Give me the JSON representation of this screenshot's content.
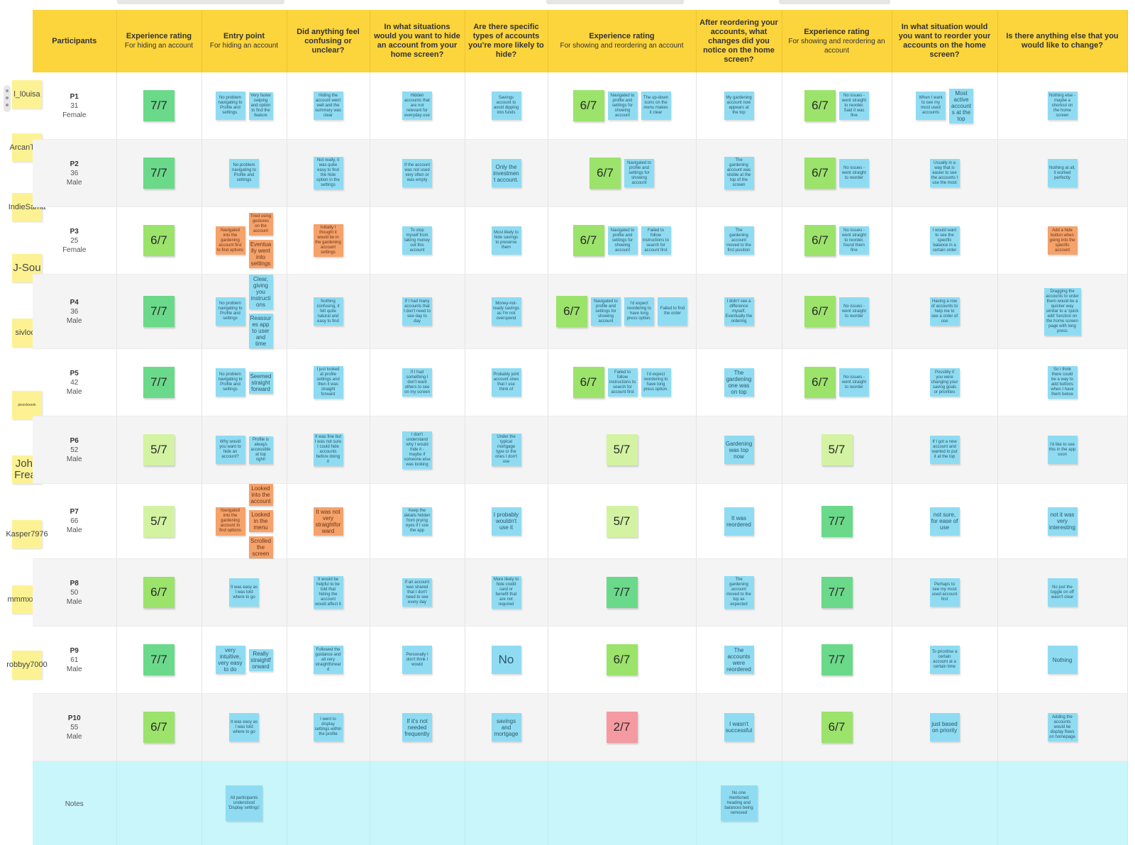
{
  "headers": [
    {
      "title": "Participants",
      "sub": ""
    },
    {
      "title": "Experience rating",
      "sub": "For hiding an account"
    },
    {
      "title": "Entry point",
      "sub": "For hiding an account"
    },
    {
      "title": "Did anything feel confusing or unclear?",
      "sub": ""
    },
    {
      "title": "In what situations would you want to hide an account from your home screen?",
      "sub": ""
    },
    {
      "title": "Are there specific types of accounts you're more likely to hide?",
      "sub": ""
    },
    {
      "title": "Experience rating",
      "sub": "For showing and reordering an account"
    },
    {
      "title": "After reordering your accounts, what changes did you notice on the home screen?",
      "sub": ""
    },
    {
      "title": "Experience rating",
      "sub": "For showing and reordering an account"
    },
    {
      "title": "In what situation would you want to reorder your accounts on the home screen?",
      "sub": ""
    },
    {
      "title": "Is there anything else that you would like to change?",
      "sub": ""
    }
  ],
  "stickies": [
    "l_l0uisa",
    "ArcanTest",
    "IndieSama",
    "J-Sou",
    "sivlock",
    "pixxxlxxxok",
    "John Frear",
    "Kasper7976",
    "mmmxxxxx",
    "robbyy7000"
  ],
  "participants": [
    {
      "id": "P1",
      "age": "31",
      "gender": "Female",
      "rating_hide": "7/7",
      "rating_show": "6/7",
      "rating_reorder": "6/7",
      "entry": [
        "No problem navigating to Profile and settings.",
        "Very faster swiping and option to find the feature"
      ],
      "confusing": [
        "Hiding the account went well and the summary was clear"
      ],
      "hide_when": [
        "Hidden accounts that are not relevant for everyday use"
      ],
      "types": [
        "Savings account to avoid dipping into funds"
      ],
      "show": [
        "Navigated to profile and settings for showing account",
        "The up-down icons on the menu makes it clear"
      ],
      "changes": [
        "My gardening account now appears at the top"
      ],
      "rq": [
        "No issues - went straight to reorder. Said it was fine"
      ],
      "reorder_when": [
        "When I want to see my most used accounts",
        "Most active accounts at the top"
      ],
      "else": [
        "Nothing else - maybe a shortcut on the home screen"
      ]
    },
    {
      "id": "P2",
      "age": "36",
      "gender": "Male",
      "rating_hide": "7/7",
      "rating_show": "6/7",
      "rating_reorder": "6/7",
      "entry": [
        "No problem navigating to Profile and settings"
      ],
      "confusing": [
        "Not really, it was quite easy to find the hide option in the settings"
      ],
      "hide_when": [
        "If the account was not used very often or was empty"
      ],
      "types": [
        "Only the investment account."
      ],
      "show": [
        "Navigated to profile and settings for showing account"
      ],
      "changes": [
        "The gardening account was visible at the top of the screen"
      ],
      "rq": [
        "No issues - went straight to reorder"
      ],
      "reorder_when": [
        "Usually in a way that is easier to see the accounts I use the most"
      ],
      "else": [
        "Nothing at all, it worked perfectly"
      ]
    },
    {
      "id": "P3",
      "age": "25",
      "gender": "Female",
      "rating_hide": "6/7",
      "rating_show": "6/7",
      "rating_reorder": "6/7",
      "entry": [
        "Navigated into the gardening account first to find options",
        "Tried using gestures on the account",
        "Eventually went into settings"
      ],
      "confusing": [
        "Initially I thought it would be in the gardening account settings"
      ],
      "hide_when": [
        "To stop myself from taking money out this account"
      ],
      "types": [
        "Most likely to hide savings to preserve them"
      ],
      "show": [
        "Navigated to profile and settings for showing account",
        "Failed to follow instructions to search for account first"
      ],
      "changes": [
        "The gardening account moved to the first position"
      ],
      "rq": [
        "No issues - went straight to reorder, found them fine"
      ],
      "reorder_when": [
        "I would want to see the specific balance in a certain order"
      ],
      "else": [
        "Add a hide button when going into the specific account"
      ]
    },
    {
      "id": "P4",
      "age": "36",
      "gender": "Male",
      "rating_hide": "7/7",
      "rating_show": "6/7",
      "rating_reorder": "6/7",
      "entry": [
        "No problem navigating to Profile and settings",
        "Clear, giving you instructions",
        "Reassures app to user and time"
      ],
      "confusing": [
        "Nothing confusing, it felt quite natural and easy to find"
      ],
      "hide_when": [
        "If I had many accounts that I don't need to see day to day"
      ],
      "types": [
        "Money-not-ready savings as I'm not overspend"
      ],
      "show": [
        "Navigated to profile and settings for showing account",
        "I'd expect reordering to have long press option.",
        "Failed to find the order"
      ],
      "changes": [
        "I didn't see a difference myself. Eventually the ordering"
      ],
      "rq": [
        "No issues - went straight to reorder"
      ],
      "reorder_when": [
        "Having a row of accounts to help me to see a order of use"
      ],
      "else": [
        "Dragging the accounts to order them would be a quicker way similar to a 'quick edit' function on the home screen page with long press"
      ]
    },
    {
      "id": "P5",
      "age": "42",
      "gender": "Male",
      "rating_hide": "7/7",
      "rating_show": "6/7",
      "rating_reorder": "6/7",
      "entry": [
        "No problem navigating to Profile and settings",
        "Seemed straight forward"
      ],
      "confusing": [
        "I just looked at profile settings and then it was straight forward"
      ],
      "hide_when": [
        "If I had something I don't want others to see on my screen"
      ],
      "types": [
        "Probably joint account ones that I use think of"
      ],
      "show": [
        "Failed to follow instructions to search for account first",
        "I'd expect reordering to have long press option."
      ],
      "changes": [
        "The gardening one was on top"
      ],
      "rq": [
        "No issues - went straight to reorder"
      ],
      "reorder_when": [
        "Possibly if you were changing your saving goals or priorities"
      ],
      "else": [
        "So I think there could be a way to add buttons when I have them below"
      ]
    },
    {
      "id": "P6",
      "age": "52",
      "gender": "Male",
      "rating_hide": "5/7",
      "rating_show": "5/7",
      "rating_reorder": "5/7",
      "entry": [
        "Why would you want to hide an account?",
        "Profile is always accessible at top right!"
      ],
      "confusing": [
        "It was fine but I was not sure I could hide accounts before doing it"
      ],
      "hide_when": [
        "I don't understand why I would hide it - maybe if someone else was looking"
      ],
      "types": [
        "Under the typical mortgage type or the ones I don't use"
      ],
      "show": [],
      "changes": [
        "Gardening was top now"
      ],
      "rq": [],
      "reorder_when": [
        "If I got a new account and wanted to put it at the top"
      ],
      "else": [
        "I'd like to see this in the app soon"
      ]
    },
    {
      "id": "P7",
      "age": "66",
      "gender": "Male",
      "rating_hide": "5/7",
      "rating_show": "5/7",
      "rating_reorder": "7/7",
      "entry": [
        "Navigated into the gardening account to find options",
        "Looked into the account",
        "Looked in the menu",
        "Scrolled the screen"
      ],
      "confusing": [
        "It was not very straightforward"
      ],
      "hide_when": [
        "Keep the details hidden from prying eyes if I use the app"
      ],
      "types": [
        "I probably wouldn't use it"
      ],
      "show": [],
      "changes": [
        "It was reordered"
      ],
      "rq": [],
      "reorder_when": [
        "not sure, for ease of use"
      ],
      "else": [
        "not it was very interesting"
      ]
    },
    {
      "id": "P8",
      "age": "50",
      "gender": "Male",
      "rating_hide": "6/7",
      "rating_show": "7/7",
      "rating_reorder": "7/7",
      "entry": [
        "It was easy as I was told where to go"
      ],
      "confusing": [
        "It would be helpful to be told that hiding the account would affect it"
      ],
      "hide_when": [
        "If an account was shared that I don't need to see every day"
      ],
      "types": [
        "More likely to hide credit card or benefit that are not required"
      ],
      "show": [],
      "changes": [
        "The gardening account moved to the top as expected"
      ],
      "rq": [],
      "reorder_when": [
        "Perhaps to see my most used account first"
      ],
      "else": [
        "No just the toggle on off wasn't clear"
      ]
    },
    {
      "id": "P9",
      "age": "61",
      "gender": "Male",
      "rating_hide": "7/7",
      "rating_show": "6/7",
      "rating_reorder": "7/7",
      "entry": [
        "very intuitive, very easy to do",
        "Really straightforward"
      ],
      "confusing": [
        "Followed the guidance and all very straightforward"
      ],
      "hide_when": [
        "Personally I don't think I would"
      ],
      "types": [
        "No"
      ],
      "show": [],
      "changes": [
        "The accounts were reordered"
      ],
      "rq": [],
      "reorder_when": [
        "To prioritise a certain account at a certain time"
      ],
      "else": [
        "Nothing"
      ]
    },
    {
      "id": "P10",
      "age": "55",
      "gender": "Male",
      "rating_hide": "6/7",
      "rating_show": "2/7",
      "rating_reorder": "6/7",
      "entry": [
        "It was easy as I was told where to go"
      ],
      "confusing": [
        "I went to display settings within the profile"
      ],
      "hide_when": [
        "If it's not needed frequently"
      ],
      "types": [
        "savings and mortgage"
      ],
      "show": [],
      "changes": [
        "I wasn't successful"
      ],
      "rq": [],
      "reorder_when": [
        "just based on priority"
      ],
      "else": [
        "Adding the accounts would be display flows on homepage"
      ]
    }
  ],
  "notes": {
    "label": "Notes",
    "entry": "All participants understood 'Display settings'",
    "changes": "No one mentioned heading and balances being removed"
  },
  "colors": {
    "header": "#fcd43c",
    "note_blue": "#8fdcf2",
    "note_orange": "#f5a26b",
    "notes_row": "#c8f6fb",
    "rating_7": "#6bd98a",
    "rating_6": "#9be36a",
    "rating_5": "#d3f3a3",
    "rating_2": "#f59aa1",
    "sticky": "#fdf293"
  }
}
